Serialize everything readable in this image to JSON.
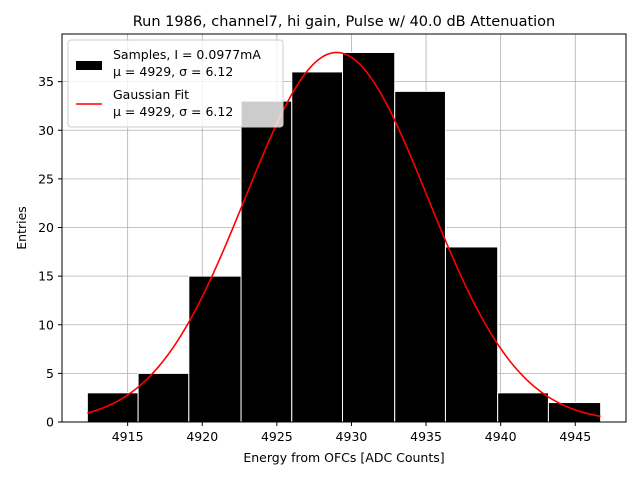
{
  "chart_data": {
    "type": "bar",
    "title": "Run 1986, channel7, hi gain, Pulse w/ 40.0 dB Attenuation",
    "xlabel": "Energy from OFCs [ADC Counts]",
    "ylabel": "Entries",
    "xlim": [
      4910.6,
      4948.4
    ],
    "ylim": [
      0,
      39.9
    ],
    "xticks": [
      4915,
      4920,
      4925,
      4930,
      4935,
      4940,
      4945
    ],
    "yticks": [
      0,
      5,
      10,
      15,
      20,
      25,
      30,
      35
    ],
    "grid": true,
    "legend_position": "top-left",
    "bins": [
      {
        "x0": 4912.3,
        "x1": 4915.7,
        "count": 3
      },
      {
        "x0": 4915.7,
        "x1": 4919.1,
        "count": 5
      },
      {
        "x0": 4919.1,
        "x1": 4922.6,
        "count": 15
      },
      {
        "x0": 4922.6,
        "x1": 4926.0,
        "count": 33
      },
      {
        "x0": 4926.0,
        "x1": 4929.4,
        "count": 36
      },
      {
        "x0": 4929.4,
        "x1": 4932.9,
        "count": 38
      },
      {
        "x0": 4932.9,
        "x1": 4936.3,
        "count": 34
      },
      {
        "x0": 4936.3,
        "x1": 4939.8,
        "count": 18
      },
      {
        "x0": 4939.8,
        "x1": 4943.2,
        "count": 3
      },
      {
        "x0": 4943.2,
        "x1": 4946.7,
        "count": 2
      }
    ],
    "fit": {
      "mu": 4929,
      "sigma": 6.12,
      "amplitude": 38.0
    },
    "series": [
      {
        "name": "Samples, I = 0.0977mA",
        "stats": "μ = 4929, σ = 6.12",
        "color": "#000000"
      },
      {
        "name": "Gaussian Fit",
        "stats": "μ = 4929, σ = 6.12",
        "color": "#ff0000"
      }
    ]
  }
}
